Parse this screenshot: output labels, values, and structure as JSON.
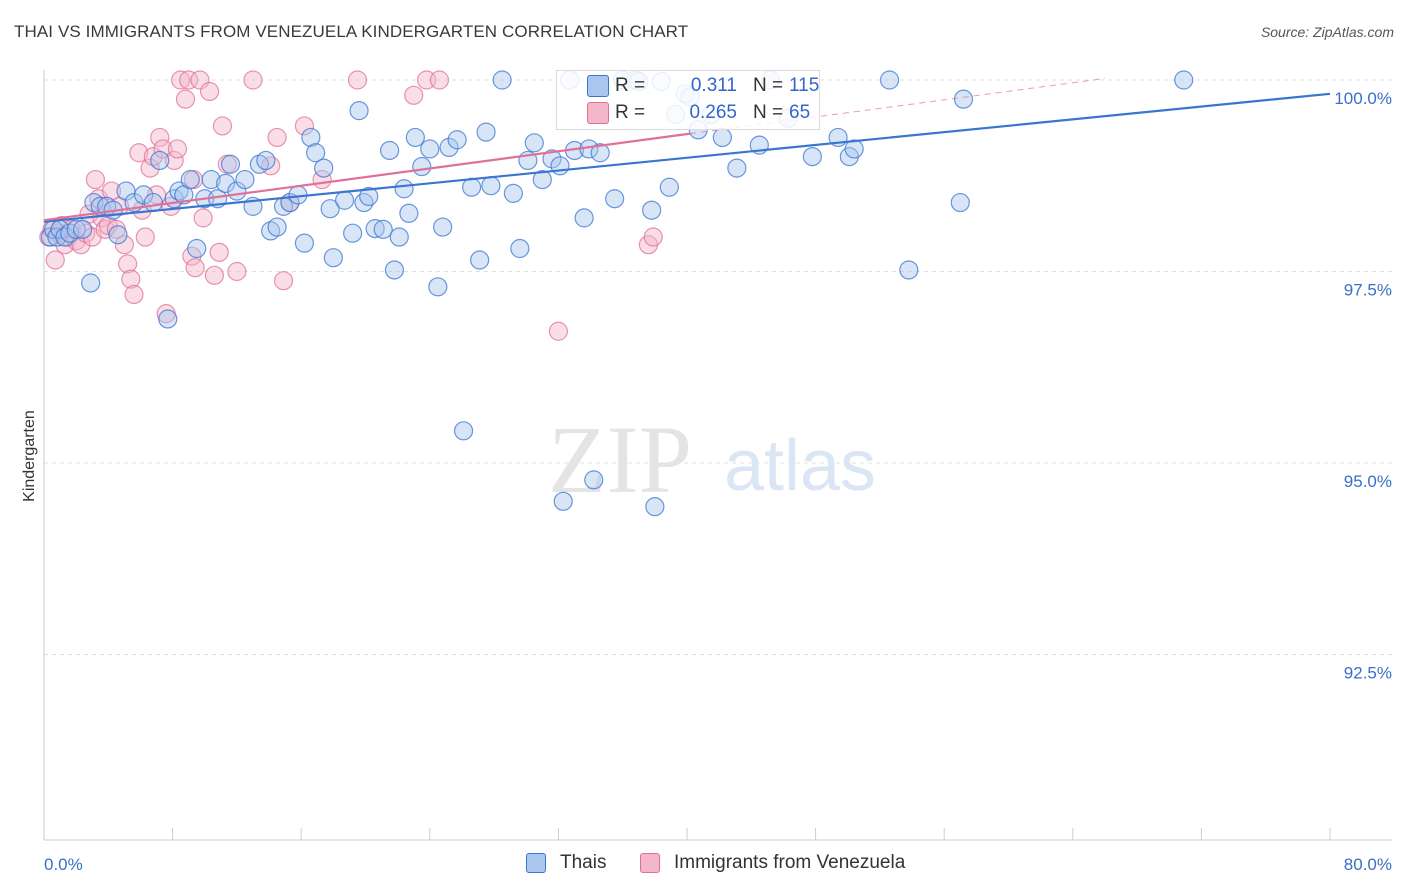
{
  "title": "THAI VS IMMIGRANTS FROM VENEZUELA KINDERGARTEN CORRELATION CHART",
  "source": "Source: ZipAtlas.com",
  "watermark": {
    "zip": "ZIP",
    "atlas": "atlas"
  },
  "legend": {
    "series1": {
      "r_label": "R =",
      "r_value": "0.311",
      "n_label": "N =",
      "n_value": "115"
    },
    "series2": {
      "r_label": "R =",
      "r_value": "0.265",
      "n_label": "N =",
      "n_value": "65"
    }
  },
  "colors": {
    "blue": "#3a75d1",
    "blue_fill": "#a9c6ee",
    "pink": "#e07098",
    "pink_fill": "#f4b6c9",
    "tick_label": "#3a6fc7",
    "grid": "#e0e0e0"
  },
  "chart_data": {
    "type": "scatter",
    "title": "THAI VS IMMIGRANTS FROM VENEZUELA KINDERGARTEN CORRELATION CHART",
    "xlabel": "",
    "ylabel": "Kindergarten",
    "xlim": [
      0,
      80
    ],
    "ylim": [
      90.2,
      100.6
    ],
    "x_tick_labels": [
      {
        "value": 0,
        "label": "0.0%"
      },
      {
        "value": 80,
        "label": "80.0%"
      }
    ],
    "y_tick_labels": [
      {
        "value": 100,
        "label": "100.0%"
      },
      {
        "value": 97.5,
        "label": "97.5%"
      },
      {
        "value": 95,
        "label": "95.0%"
      },
      {
        "value": 92.5,
        "label": "92.5%"
      }
    ],
    "series": [
      {
        "name": "Thais",
        "color": "#3a75d1",
        "trend": {
          "x0": 0,
          "y0": 98.15,
          "x1": 80,
          "y1": 99.82
        },
        "points": [
          [
            0.4,
            97.95
          ],
          [
            0.6,
            98.05
          ],
          [
            0.8,
            97.95
          ],
          [
            1.0,
            98.05
          ],
          [
            1.3,
            97.95
          ],
          [
            1.6,
            98.0
          ],
          [
            2.0,
            98.05
          ],
          [
            2.4,
            98.05
          ],
          [
            2.9,
            97.35
          ],
          [
            3.1,
            98.4
          ],
          [
            3.5,
            98.35
          ],
          [
            3.9,
            98.35
          ],
          [
            4.3,
            98.3
          ],
          [
            4.6,
            97.98
          ],
          [
            5.1,
            98.55
          ],
          [
            5.6,
            98.4
          ],
          [
            6.2,
            98.5
          ],
          [
            6.8,
            98.4
          ],
          [
            7.2,
            98.95
          ],
          [
            7.7,
            96.88
          ],
          [
            8.1,
            98.45
          ],
          [
            8.4,
            98.55
          ],
          [
            8.7,
            98.5
          ],
          [
            9.1,
            98.7
          ],
          [
            9.5,
            97.8
          ],
          [
            10.0,
            98.45
          ],
          [
            10.4,
            98.7
          ],
          [
            10.8,
            98.45
          ],
          [
            11.3,
            98.65
          ],
          [
            11.6,
            98.9
          ],
          [
            12.0,
            98.55
          ],
          [
            12.5,
            98.7
          ],
          [
            13.0,
            98.35
          ],
          [
            13.4,
            98.9
          ],
          [
            13.8,
            98.95
          ],
          [
            14.1,
            98.03
          ],
          [
            14.5,
            98.08
          ],
          [
            14.9,
            98.35
          ],
          [
            15.3,
            98.4
          ],
          [
            15.8,
            98.5
          ],
          [
            16.2,
            97.87
          ],
          [
            16.6,
            99.25
          ],
          [
            16.9,
            99.05
          ],
          [
            17.4,
            98.85
          ],
          [
            17.8,
            98.32
          ],
          [
            18.0,
            97.68
          ],
          [
            18.7,
            98.43
          ],
          [
            19.2,
            98.0
          ],
          [
            19.6,
            99.6
          ],
          [
            19.9,
            98.4
          ],
          [
            20.2,
            98.48
          ],
          [
            20.6,
            98.06
          ],
          [
            21.1,
            98.05
          ],
          [
            21.5,
            99.08
          ],
          [
            21.8,
            97.52
          ],
          [
            22.1,
            97.95
          ],
          [
            22.4,
            98.58
          ],
          [
            22.7,
            98.26
          ],
          [
            23.1,
            99.25
          ],
          [
            23.5,
            98.87
          ],
          [
            24.0,
            99.1
          ],
          [
            24.5,
            97.3
          ],
          [
            24.8,
            98.08
          ],
          [
            25.2,
            99.12
          ],
          [
            25.7,
            99.22
          ],
          [
            26.1,
            95.42
          ],
          [
            26.6,
            98.6
          ],
          [
            27.1,
            97.65
          ],
          [
            27.5,
            99.32
          ],
          [
            27.8,
            98.62
          ],
          [
            28.5,
            100.0
          ],
          [
            29.2,
            98.52
          ],
          [
            29.6,
            97.8
          ],
          [
            30.1,
            98.95
          ],
          [
            30.5,
            99.18
          ],
          [
            31.0,
            98.7
          ],
          [
            31.6,
            98.97
          ],
          [
            32.1,
            98.88
          ],
          [
            32.3,
            94.5
          ],
          [
            33.0,
            99.08
          ],
          [
            33.6,
            98.2
          ],
          [
            33.9,
            99.1
          ],
          [
            34.2,
            94.78
          ],
          [
            34.6,
            99.05
          ],
          [
            35.5,
            98.45
          ],
          [
            36.0,
            100.0
          ],
          [
            36.8,
            100.0
          ],
          [
            37.8,
            98.3
          ],
          [
            38.0,
            94.43
          ],
          [
            38.4,
            99.98
          ],
          [
            38.9,
            98.6
          ],
          [
            39.3,
            99.55
          ],
          [
            39.9,
            99.82
          ],
          [
            40.2,
            99.78
          ],
          [
            40.7,
            99.35
          ],
          [
            41.5,
            99.55
          ],
          [
            42.2,
            99.25
          ],
          [
            43.1,
            98.85
          ],
          [
            44.5,
            99.15
          ],
          [
            45.2,
            100.0
          ],
          [
            46.3,
            99.5
          ],
          [
            47.8,
            99.0
          ],
          [
            49.4,
            99.25
          ],
          [
            50.1,
            99.0
          ],
          [
            50.4,
            99.1
          ],
          [
            52.6,
            100.0
          ],
          [
            53.8,
            97.52
          ],
          [
            57.2,
            99.75
          ],
          [
            57.0,
            98.4
          ],
          [
            70.9,
            100.0
          ],
          [
            32.7,
            100.0
          ],
          [
            37.0,
            99.98
          ]
        ]
      },
      {
        "name": "Immigrants from Venezuela",
        "color": "#e07098",
        "trend": {
          "x0": 0,
          "y0": 98.17,
          "x1": 40.2,
          "y1": 99.3
        },
        "trend_dashed": {
          "x0": 40.2,
          "y0": 99.3,
          "x1": 66.0,
          "y1": 100.02
        },
        "points": [
          [
            0.3,
            97.95
          ],
          [
            0.5,
            98.05
          ],
          [
            0.7,
            97.65
          ],
          [
            0.9,
            98.0
          ],
          [
            1.1,
            98.1
          ],
          [
            1.3,
            97.85
          ],
          [
            1.5,
            97.95
          ],
          [
            1.7,
            98.05
          ],
          [
            2.0,
            97.9
          ],
          [
            2.3,
            97.85
          ],
          [
            2.6,
            98.0
          ],
          [
            2.8,
            98.25
          ],
          [
            3.0,
            97.95
          ],
          [
            3.2,
            98.7
          ],
          [
            3.4,
            98.45
          ],
          [
            3.6,
            98.2
          ],
          [
            3.8,
            98.05
          ],
          [
            4.0,
            98.1
          ],
          [
            4.2,
            98.55
          ],
          [
            4.5,
            98.05
          ],
          [
            4.7,
            98.35
          ],
          [
            5.0,
            97.85
          ],
          [
            5.2,
            97.6
          ],
          [
            5.4,
            97.4
          ],
          [
            5.6,
            97.2
          ],
          [
            5.9,
            99.05
          ],
          [
            6.1,
            98.3
          ],
          [
            6.3,
            97.95
          ],
          [
            6.6,
            98.85
          ],
          [
            6.8,
            99.0
          ],
          [
            7.0,
            98.5
          ],
          [
            7.2,
            99.25
          ],
          [
            7.4,
            99.1
          ],
          [
            7.6,
            96.95
          ],
          [
            7.9,
            98.35
          ],
          [
            8.1,
            98.95
          ],
          [
            8.3,
            99.1
          ],
          [
            8.5,
            100.0
          ],
          [
            8.8,
            99.75
          ],
          [
            9.0,
            100.0
          ],
          [
            9.2,
            97.7
          ],
          [
            9.4,
            97.55
          ],
          [
            9.7,
            100.0
          ],
          [
            9.9,
            98.2
          ],
          [
            10.3,
            99.85
          ],
          [
            10.6,
            97.45
          ],
          [
            10.9,
            97.75
          ],
          [
            11.1,
            99.4
          ],
          [
            11.4,
            98.9
          ],
          [
            12.0,
            97.5
          ],
          [
            13.0,
            100.0
          ],
          [
            14.1,
            98.88
          ],
          [
            14.5,
            99.25
          ],
          [
            14.9,
            97.38
          ],
          [
            15.3,
            98.4
          ],
          [
            16.2,
            99.4
          ],
          [
            17.3,
            98.7
          ],
          [
            19.5,
            100.0
          ],
          [
            23.0,
            99.8
          ],
          [
            23.8,
            100.0
          ],
          [
            24.6,
            100.0
          ],
          [
            32.0,
            96.72
          ],
          [
            37.6,
            97.85
          ],
          [
            37.9,
            97.95
          ],
          [
            9.3,
            98.7
          ]
        ]
      }
    ]
  },
  "bottom_legend": {
    "series1": "Thais",
    "series2": "Immigrants from Venezuela"
  }
}
